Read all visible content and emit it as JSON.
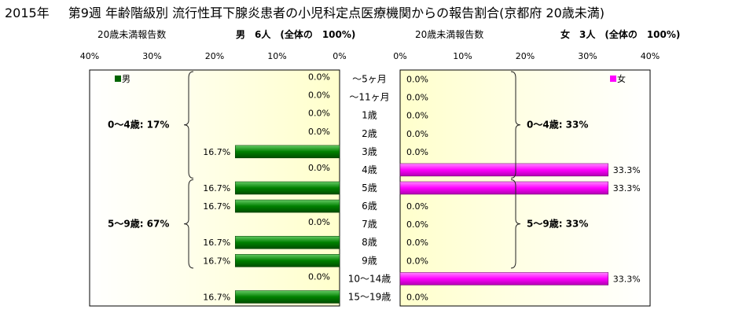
{
  "header": {
    "year": "2015年",
    "title": "第9週 年齢階級別 流行性耳下腺炎患者の小児科定点医療機関からの報告割合(京都府 20歳未満)",
    "left_subtitle": "20歳未満報告数",
    "left_count": "男　6人　(全体の　100%)",
    "right_subtitle": "20歳未満報告数",
    "right_count": "女　3人　(全体の　100%)"
  },
  "chart_data": [
    {
      "type": "bar",
      "orientation": "horizontal",
      "direction": "leftward",
      "series": [
        {
          "name": "男",
          "color": "#008000",
          "values": [
            0.0,
            0.0,
            0.0,
            0.0,
            16.7,
            0.0,
            16.7,
            16.7,
            0.0,
            16.7,
            16.7,
            0.0,
            16.7
          ],
          "labels": [
            "0.0%",
            "0.0%",
            "0.0%",
            "0.0%",
            "16.7%",
            "0.0%",
            "16.7%",
            "16.7%",
            "0.0%",
            "16.7%",
            "16.7%",
            "0.0%",
            "16.7%"
          ]
        }
      ],
      "categories": [
        "～5ヶ月",
        "～11ヶ月",
        "1歳",
        "2歳",
        "3歳",
        "4歳",
        "5歳",
        "6歳",
        "7歳",
        "8歳",
        "9歳",
        "10～14歳",
        "15～19歳"
      ],
      "xlim": [
        0,
        40
      ],
      "xticks": [
        "40%",
        "30%",
        "20%",
        "10%",
        "0%"
      ],
      "legend": "top-left",
      "annotations": [
        "0～4歳: 17%",
        "5～9歳: 67%"
      ]
    },
    {
      "type": "bar",
      "orientation": "horizontal",
      "direction": "rightward",
      "series": [
        {
          "name": "女",
          "color": "#ff00ff",
          "values": [
            0.0,
            0.0,
            0.0,
            0.0,
            0.0,
            33.3,
            33.3,
            0.0,
            0.0,
            0.0,
            0.0,
            33.3,
            0.0
          ],
          "labels": [
            "0.0%",
            "0.0%",
            "0.0%",
            "0.0%",
            "0.0%",
            "33.3%",
            "33.3%",
            "0.0%",
            "0.0%",
            "0.0%",
            "0.0%",
            "33.3%",
            "0.0%"
          ]
        }
      ],
      "categories": [
        "～5ヶ月",
        "～11ヶ月",
        "1歳",
        "2歳",
        "3歳",
        "4歳",
        "5歳",
        "6歳",
        "7歳",
        "8歳",
        "9歳",
        "10～14歳",
        "15～19歳"
      ],
      "xlim": [
        0,
        40
      ],
      "xticks": [
        "0%",
        "10%",
        "20%",
        "30%",
        "40%"
      ],
      "legend": "top-right",
      "annotations": [
        "0～4歳: 33%",
        "5～9歳: 33%"
      ]
    }
  ]
}
